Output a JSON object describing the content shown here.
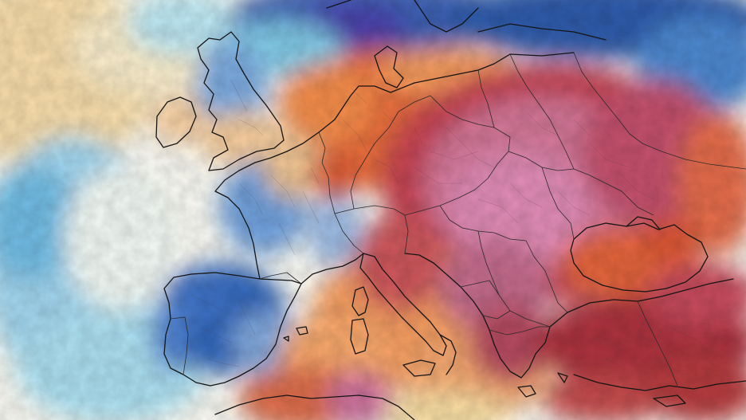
{
  "map": {
    "type": "temperature-anomaly-map",
    "region": "Europe",
    "printed_text": [],
    "colors": {
      "deep_blue": "#2c5aa8",
      "mid_blue": "#5b8fd6",
      "light_blue": "#a9d6ec",
      "cyan": "#7fd0e0",
      "pale": "#f6f6ef",
      "pale_yellow": "#f7dca0",
      "orange": "#f0a060",
      "red_orange": "#e0603a",
      "red": "#c43a2c",
      "dark_red": "#a8323a",
      "magenta": "#c9708f",
      "pink": "#d98cb0"
    },
    "regions": [
      {
        "name": "atlantic-ocean",
        "tone": "pale"
      },
      {
        "name": "north-sea-baltic",
        "tone": "deep_blue"
      },
      {
        "name": "iberia",
        "tone": "deep_blue"
      },
      {
        "name": "western-france",
        "tone": "mid_blue"
      },
      {
        "name": "british-isles",
        "tone": "mid_blue"
      },
      {
        "name": "central-europe",
        "tone": "red"
      },
      {
        "name": "eastern-europe",
        "tone": "magenta"
      },
      {
        "name": "mediterranean",
        "tone": "orange"
      },
      {
        "name": "black-sea",
        "tone": "red_orange"
      },
      {
        "name": "anatolia",
        "tone": "dark_red"
      }
    ]
  }
}
